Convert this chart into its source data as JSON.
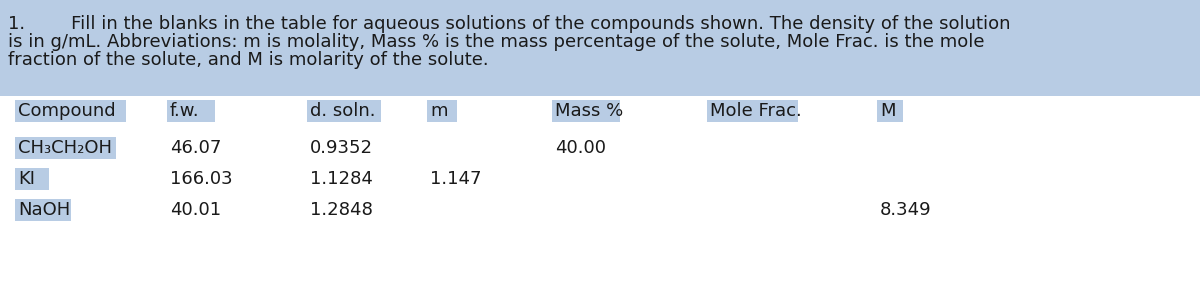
{
  "title_number": "1.",
  "title_indent": "        ",
  "title_text": "Fill in the blanks in the table for aqueous solutions of the compounds shown. The density of the solution\nis in g/mL. Abbreviations: m is molality, Mass % is the mass percentage of the solute, Mole Frac. is the mole\nfraction of the solute, and M is molarity of the solute.",
  "highlight_color": "#b8cce4",
  "text_color": "#1a1a1a",
  "bg_color": "#ffffff",
  "header_row": [
    "Compound",
    "f.w.",
    "d. soln.",
    "m",
    "Mass %",
    "Mole Frac.",
    "M"
  ],
  "data_rows": [
    [
      "CH₃CH₂OH",
      "46.07",
      "0.9352",
      "",
      "40.00",
      "",
      ""
    ],
    [
      "KI",
      "166.03",
      "1.1284",
      "1.147",
      "",
      "",
      ""
    ],
    [
      "NaOH",
      "40.01",
      "1.2848",
      "",
      "",
      "",
      "8.349"
    ]
  ],
  "font_size": 13,
  "title_font_size": 13,
  "header_font_size": 13
}
